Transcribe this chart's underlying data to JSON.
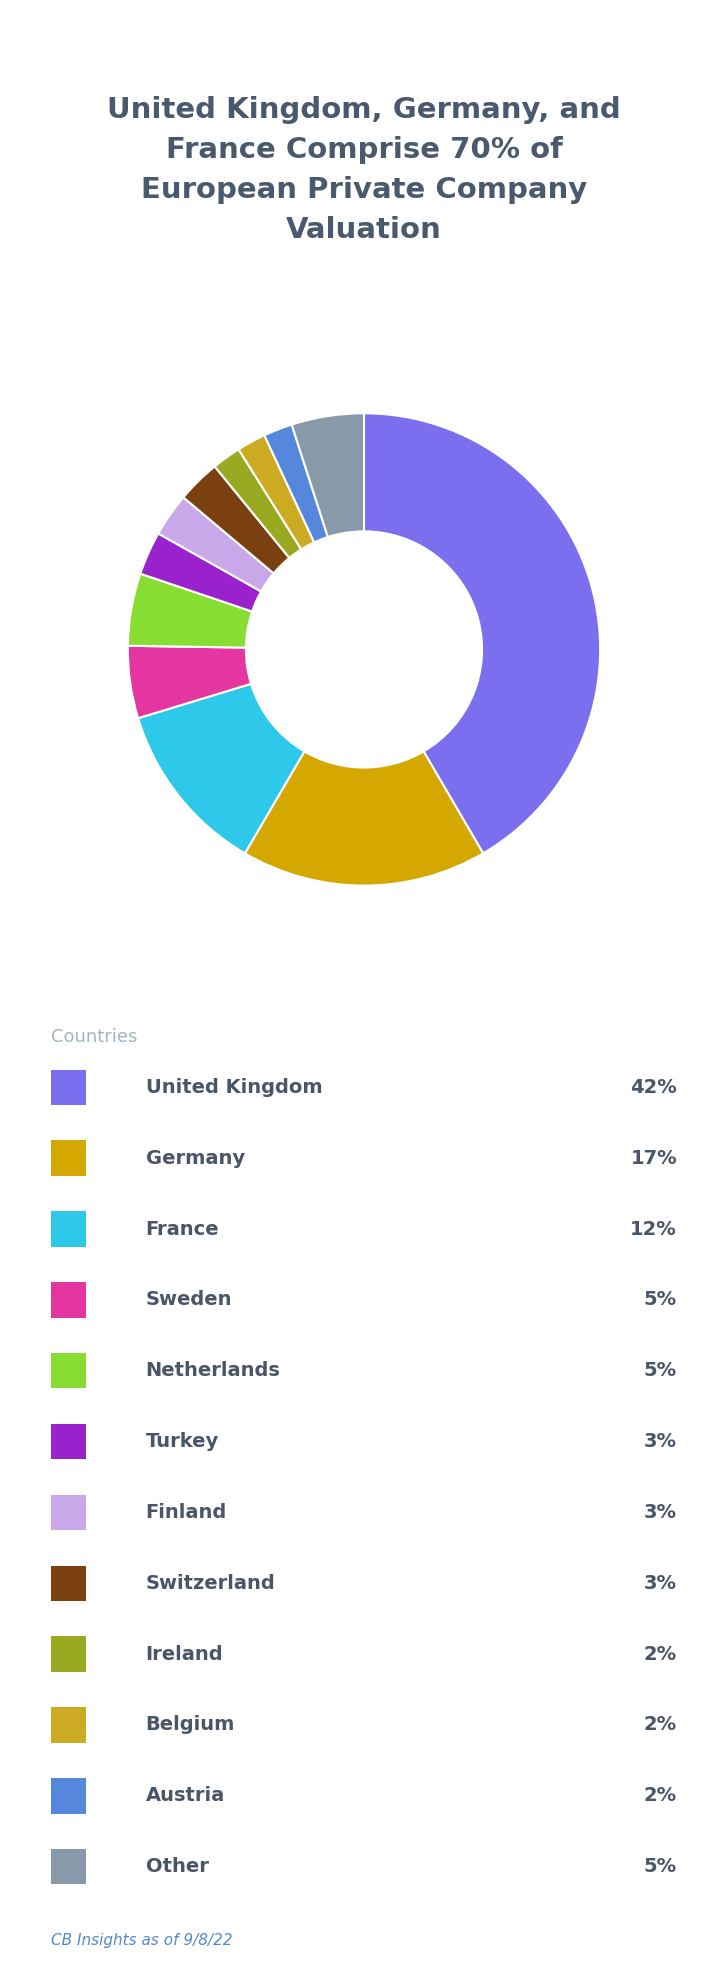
{
  "title": "United Kingdom, Germany, and\nFrance Comprise 70% of\nEuropean Private Company\nValuation",
  "title_color": "#4a5a6e",
  "background_color": "#ffffff",
  "countries_label": "Countries",
  "source_text": "CB Insights as of 9/8/22",
  "categories": [
    "United Kingdom",
    "Germany",
    "France",
    "Sweden",
    "Netherlands",
    "Turkey",
    "Finland",
    "Switzerland",
    "Ireland",
    "Belgium",
    "Austria",
    "Other"
  ],
  "values": [
    42,
    17,
    12,
    5,
    5,
    3,
    3,
    3,
    2,
    2,
    2,
    5
  ],
  "colors": [
    "#7b6fef",
    "#d4a800",
    "#2dc8ea",
    "#e535a0",
    "#88dd33",
    "#9922cc",
    "#c8a8e8",
    "#7a4010",
    "#99aa22",
    "#ccaa22",
    "#5588dd",
    "#8899aa"
  ],
  "pct_labels": [
    "42%",
    "17%",
    "12%",
    "5%",
    "5%",
    "3%",
    "3%",
    "3%",
    "2%",
    "2%",
    "2%",
    "5%"
  ],
  "figsize": [
    7.28,
    19.68
  ],
  "dpi": 100
}
